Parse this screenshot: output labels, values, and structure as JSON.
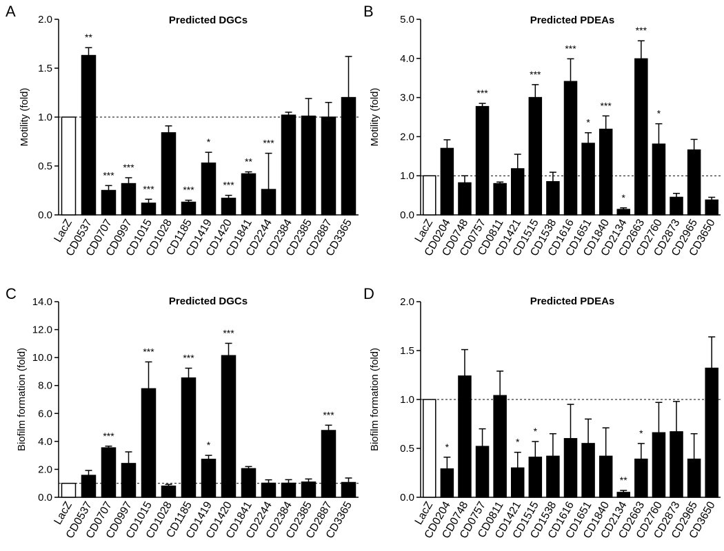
{
  "chart_data": [
    {
      "panel": "A",
      "type": "bar",
      "title": "Predicted DGCs",
      "ylabel": "Motility (fold)",
      "ylim": [
        0,
        2.0
      ],
      "yticks": [
        "0.0",
        "0.5",
        "1.0",
        "1.5",
        "2.0"
      ],
      "yticks_values": [
        0,
        0.5,
        1.0,
        1.5,
        2.0
      ],
      "reference_line": 1.0,
      "categories": [
        "LacZ",
        "CD0537",
        "CD0707",
        "CD0997",
        "CD1015",
        "CD1028",
        "CD1185",
        "CD1419",
        "CD1420",
        "CD1841",
        "CD2244",
        "CD2384",
        "CD2385",
        "CD2887",
        "CD3365"
      ],
      "values": [
        1.0,
        1.63,
        0.25,
        0.32,
        0.12,
        0.84,
        0.13,
        0.53,
        0.17,
        0.42,
        0.26,
        1.02,
        1.01,
        1.0,
        1.2
      ],
      "errors": [
        0,
        0.08,
        0.05,
        0.06,
        0.04,
        0.07,
        0.02,
        0.11,
        0.03,
        0.02,
        0.37,
        0.03,
        0.18,
        0.15,
        0.42
      ],
      "significance": [
        "",
        "**",
        "***",
        "***",
        "***",
        "",
        "***",
        "*",
        "***",
        "**",
        "***",
        "",
        "",
        "",
        ""
      ],
      "control_index": 0
    },
    {
      "panel": "B",
      "type": "bar",
      "title": "Predicted PDEAs",
      "ylabel": "Motility (fold)",
      "ylim": [
        0,
        5.0
      ],
      "yticks": [
        "0.0",
        "1.0",
        "2.0",
        "3.0",
        "4.0",
        "5.0"
      ],
      "yticks_values": [
        0,
        1.0,
        2.0,
        3.0,
        4.0,
        5.0
      ],
      "reference_line": 1.0,
      "categories": [
        "LacZ",
        "CD0204",
        "CD0748",
        "CD0757",
        "CD0811",
        "CD1421",
        "CD1515",
        "CD1538",
        "CD1616",
        "CD1651",
        "CD1840",
        "CD2134",
        "CD2663",
        "CD2760",
        "CD2873",
        "CD2965",
        "CD3650"
      ],
      "values": [
        1.0,
        1.7,
        0.82,
        2.77,
        0.8,
        1.18,
        3.0,
        0.85,
        3.41,
        1.83,
        2.19,
        0.14,
        3.99,
        1.81,
        0.45,
        1.66,
        0.38
      ],
      "errors": [
        0,
        0.22,
        0.18,
        0.08,
        0.04,
        0.37,
        0.33,
        0.24,
        0.58,
        0.27,
        0.34,
        0.04,
        0.46,
        0.52,
        0.1,
        0.27,
        0.07
      ],
      "significance": [
        "",
        "",
        "",
        "***",
        "",
        "",
        "***",
        "",
        "***",
        "*",
        "***",
        "*",
        "***",
        "*",
        "",
        "",
        ""
      ],
      "control_index": 0
    },
    {
      "panel": "C",
      "type": "bar",
      "title": "Predicted DGCs",
      "ylabel": "Biofilm formation (fold)",
      "ylim": [
        0,
        14.0
      ],
      "yticks": [
        "0.0",
        "2.0",
        "4.0",
        "6.0",
        "8.0",
        "10.0",
        "12.0",
        "14.0"
      ],
      "yticks_values": [
        0,
        2.0,
        4.0,
        6.0,
        8.0,
        10.0,
        12.0,
        14.0
      ],
      "reference_line": 1.0,
      "categories": [
        "LacZ",
        "CD0537",
        "CD0707",
        "CD0997",
        "CD1015",
        "CD1028",
        "CD1185",
        "CD1419",
        "CD1420",
        "CD1841",
        "CD2244",
        "CD2384",
        "CD2385",
        "CD2887",
        "CD3365"
      ],
      "values": [
        1.0,
        1.57,
        3.54,
        2.42,
        7.77,
        0.8,
        8.54,
        2.72,
        10.14,
        2.05,
        1.01,
        1.01,
        1.09,
        4.78,
        1.06
      ],
      "errors": [
        0,
        0.35,
        0.12,
        0.83,
        1.92,
        0.12,
        0.7,
        0.28,
        0.88,
        0.15,
        0.24,
        0.25,
        0.22,
        0.38,
        0.32
      ],
      "significance": [
        "",
        "",
        "***",
        "",
        "***",
        "",
        "***",
        "*",
        "***",
        "",
        "",
        "",
        "",
        "***",
        ""
      ],
      "control_index": 0
    },
    {
      "panel": "D",
      "type": "bar",
      "title": "Predicted PDEAs",
      "ylabel": "Biofilm formation (fold)",
      "ylim": [
        0,
        2.0
      ],
      "yticks": [
        "0.0",
        "0.5",
        "1.0",
        "1.5",
        "2.0"
      ],
      "yticks_values": [
        0,
        0.5,
        1.0,
        1.5,
        2.0
      ],
      "reference_line": 1.0,
      "categories": [
        "LacZ",
        "CD0204",
        "CD0748",
        "CD0757",
        "CD0811",
        "CD1421",
        "CD1515",
        "CD1538",
        "CD1616",
        "CD1651",
        "CD1840",
        "CD2134",
        "CD2663",
        "CD2760",
        "CD2873",
        "CD2965",
        "CD3650"
      ],
      "values": [
        1.0,
        0.29,
        1.24,
        0.52,
        1.04,
        0.3,
        0.41,
        0.42,
        0.6,
        0.55,
        0.42,
        0.05,
        0.39,
        0.66,
        0.67,
        0.39,
        1.32
      ],
      "errors": [
        0,
        0.12,
        0.27,
        0.18,
        0.25,
        0.16,
        0.16,
        0.23,
        0.35,
        0.25,
        0.29,
        0.02,
        0.16,
        0.31,
        0.31,
        0.26,
        0.32
      ],
      "significance": [
        "",
        "*",
        "",
        "",
        "",
        "*",
        "*",
        "",
        "",
        "",
        "",
        "**",
        "*",
        "",
        "",
        "",
        ""
      ],
      "control_index": 0
    }
  ]
}
